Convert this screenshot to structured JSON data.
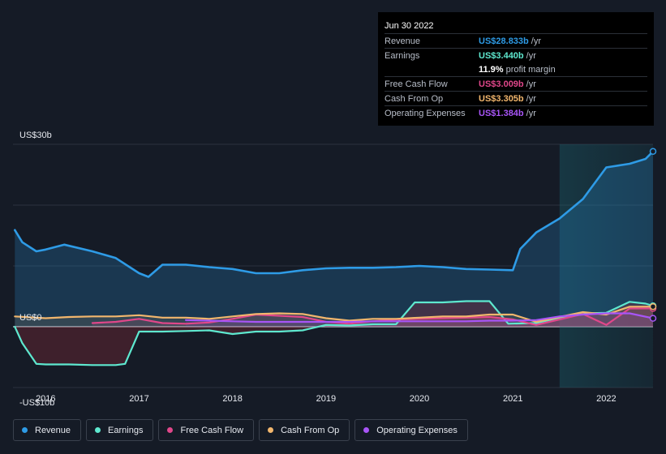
{
  "tooltip": {
    "date": "Jun 30 2022",
    "rows": [
      {
        "label": "Revenue",
        "value": "US$28.833b",
        "unit": "/yr",
        "color": "#2e9be6"
      },
      {
        "label": "Earnings",
        "value": "US$3.440b",
        "unit": "/yr",
        "color": "#5ee8cf"
      },
      {
        "label": "",
        "value": "11.9%",
        "unit": "profit margin",
        "color": "#ffffff"
      },
      {
        "label": "Free Cash Flow",
        "value": "US$3.009b",
        "unit": "/yr",
        "color": "#e0478a"
      },
      {
        "label": "Cash From Op",
        "value": "US$3.305b",
        "unit": "/yr",
        "color": "#f2b66d"
      },
      {
        "label": "Operating Expenses",
        "value": "US$1.384b",
        "unit": "/yr",
        "color": "#a855f7"
      }
    ]
  },
  "legend": [
    {
      "label": "Revenue",
      "color": "#2e9be6"
    },
    {
      "label": "Earnings",
      "color": "#5ee8cf"
    },
    {
      "label": "Free Cash Flow",
      "color": "#e0478a"
    },
    {
      "label": "Cash From Op",
      "color": "#f2b66d"
    },
    {
      "label": "Operating Expenses",
      "color": "#a855f7"
    }
  ],
  "chart_data": {
    "type": "area",
    "y_tick_labels": [
      "US$30b",
      "US$0",
      "-US$10b"
    ],
    "ylim": [
      -10,
      30
    ],
    "x_tick_labels": [
      "2016",
      "2017",
      "2018",
      "2019",
      "2020",
      "2021",
      "2022"
    ],
    "xlim": [
      2015.65,
      2022.5
    ],
    "highlight_start": 2021.5,
    "series": [
      {
        "name": "Revenue",
        "color": "#2e9be6",
        "points": [
          [
            2015.67,
            15.9
          ],
          [
            2015.75,
            13.9
          ],
          [
            2015.9,
            12.4
          ],
          [
            2016.0,
            12.7
          ],
          [
            2016.2,
            13.5
          ],
          [
            2016.5,
            12.4
          ],
          [
            2016.75,
            11.3
          ],
          [
            2017.0,
            8.8
          ],
          [
            2017.1,
            8.2
          ],
          [
            2017.25,
            10.2
          ],
          [
            2017.5,
            10.2
          ],
          [
            2017.75,
            9.8
          ],
          [
            2018.0,
            9.5
          ],
          [
            2018.25,
            8.8
          ],
          [
            2018.5,
            8.8
          ],
          [
            2018.75,
            9.3
          ],
          [
            2019.0,
            9.6
          ],
          [
            2019.25,
            9.7
          ],
          [
            2019.5,
            9.7
          ],
          [
            2019.75,
            9.8
          ],
          [
            2020.0,
            10.0
          ],
          [
            2020.25,
            9.8
          ],
          [
            2020.5,
            9.5
          ],
          [
            2020.75,
            9.4
          ],
          [
            2021.0,
            9.3
          ],
          [
            2021.08,
            12.8
          ],
          [
            2021.25,
            15.5
          ],
          [
            2021.5,
            17.8
          ],
          [
            2021.75,
            21.0
          ],
          [
            2022.0,
            26.2
          ],
          [
            2022.25,
            26.8
          ],
          [
            2022.42,
            27.6
          ],
          [
            2022.5,
            28.833
          ]
        ]
      },
      {
        "name": "Earnings",
        "color": "#5ee8cf",
        "points": [
          [
            2015.67,
            0
          ],
          [
            2015.75,
            -2.7
          ],
          [
            2015.9,
            -6.1
          ],
          [
            2016.0,
            -6.2
          ],
          [
            2016.25,
            -6.2
          ],
          [
            2016.5,
            -6.3
          ],
          [
            2016.75,
            -6.3
          ],
          [
            2016.85,
            -6.1
          ],
          [
            2017.0,
            -0.8
          ],
          [
            2017.25,
            -0.8
          ],
          [
            2017.5,
            -0.7
          ],
          [
            2017.75,
            -0.6
          ],
          [
            2018.0,
            -1.2
          ],
          [
            2018.25,
            -0.8
          ],
          [
            2018.5,
            -0.8
          ],
          [
            2018.75,
            -0.6
          ],
          [
            2019.0,
            0.3
          ],
          [
            2019.25,
            0.2
          ],
          [
            2019.5,
            0.4
          ],
          [
            2019.75,
            0.4
          ],
          [
            2019.95,
            4.0
          ],
          [
            2020.25,
            4.0
          ],
          [
            2020.5,
            4.2
          ],
          [
            2020.75,
            4.2
          ],
          [
            2020.95,
            0.5
          ],
          [
            2021.25,
            0.6
          ],
          [
            2021.5,
            1.5
          ],
          [
            2021.75,
            2.2
          ],
          [
            2022.0,
            2.3
          ],
          [
            2022.25,
            4.1
          ],
          [
            2022.42,
            3.8
          ],
          [
            2022.5,
            3.44
          ]
        ]
      },
      {
        "name": "Free Cash Flow",
        "color": "#e0478a",
        "points": [
          [
            2016.5,
            0.6
          ],
          [
            2016.75,
            0.8
          ],
          [
            2017.0,
            1.3
          ],
          [
            2017.25,
            0.6
          ],
          [
            2017.5,
            0.5
          ],
          [
            2017.75,
            0.7
          ],
          [
            2018.0,
            1.3
          ],
          [
            2018.25,
            2.0
          ],
          [
            2018.5,
            1.8
          ],
          [
            2018.75,
            1.6
          ],
          [
            2019.0,
            0.8
          ],
          [
            2019.25,
            0.5
          ],
          [
            2019.5,
            0.9
          ],
          [
            2019.75,
            1.2
          ],
          [
            2020.0,
            1.3
          ],
          [
            2020.25,
            1.4
          ],
          [
            2020.5,
            1.5
          ],
          [
            2020.75,
            1.6
          ],
          [
            2021.0,
            1.2
          ],
          [
            2021.25,
            0.3
          ],
          [
            2021.5,
            1.2
          ],
          [
            2021.75,
            2.1
          ],
          [
            2022.0,
            0.3
          ],
          [
            2022.25,
            3.0
          ],
          [
            2022.5,
            3.009
          ]
        ]
      },
      {
        "name": "Cash From Op",
        "color": "#f2b66d",
        "points": [
          [
            2015.67,
            1.7
          ],
          [
            2016.0,
            1.4
          ],
          [
            2016.25,
            1.6
          ],
          [
            2016.5,
            1.7
          ],
          [
            2016.75,
            1.7
          ],
          [
            2017.0,
            1.9
          ],
          [
            2017.25,
            1.5
          ],
          [
            2017.5,
            1.5
          ],
          [
            2017.75,
            1.3
          ],
          [
            2018.0,
            1.7
          ],
          [
            2018.25,
            2.1
          ],
          [
            2018.5,
            2.2
          ],
          [
            2018.75,
            2.1
          ],
          [
            2019.0,
            1.4
          ],
          [
            2019.25,
            1.0
          ],
          [
            2019.5,
            1.3
          ],
          [
            2019.75,
            1.3
          ],
          [
            2020.0,
            1.5
          ],
          [
            2020.25,
            1.7
          ],
          [
            2020.5,
            1.7
          ],
          [
            2020.75,
            2.0
          ],
          [
            2021.0,
            2.0
          ],
          [
            2021.25,
            0.8
          ],
          [
            2021.5,
            1.6
          ],
          [
            2021.75,
            2.4
          ],
          [
            2022.0,
            2.0
          ],
          [
            2022.25,
            3.3
          ],
          [
            2022.5,
            3.305
          ]
        ]
      },
      {
        "name": "Operating Expenses",
        "color": "#a855f7",
        "points": [
          [
            2017.5,
            1.1
          ],
          [
            2017.75,
            1.0
          ],
          [
            2018.0,
            0.9
          ],
          [
            2018.25,
            0.8
          ],
          [
            2018.5,
            0.8
          ],
          [
            2018.75,
            0.8
          ],
          [
            2019.0,
            0.8
          ],
          [
            2019.25,
            0.8
          ],
          [
            2019.5,
            0.9
          ],
          [
            2019.75,
            0.9
          ],
          [
            2020.0,
            0.9
          ],
          [
            2020.25,
            0.9
          ],
          [
            2020.5,
            0.9
          ],
          [
            2020.75,
            1.0
          ],
          [
            2021.0,
            1.0
          ],
          [
            2021.25,
            1.1
          ],
          [
            2021.5,
            1.7
          ],
          [
            2021.75,
            2.0
          ],
          [
            2022.0,
            2.2
          ],
          [
            2022.25,
            2.2
          ],
          [
            2022.5,
            1.384
          ]
        ]
      }
    ]
  }
}
